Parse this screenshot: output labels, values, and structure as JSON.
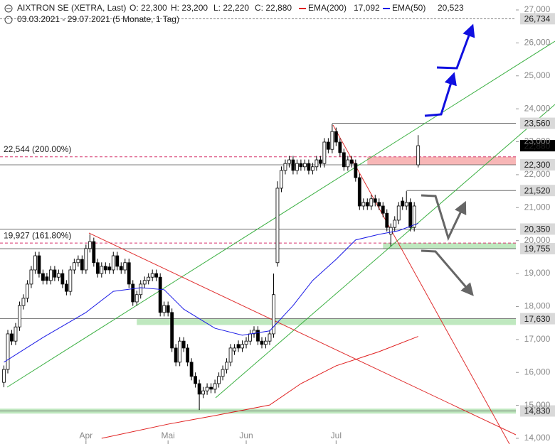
{
  "chart_data": {
    "type": "candlestick",
    "title": "AIXTRON SE (XETRA, Last)",
    "subtitle": "03.03.2021 - 29.07.2021 (5 Monate, 1 Tag)",
    "quote": [
      {
        "name": "O:",
        "label": "22,300"
      },
      {
        "name": "H:",
        "label": "23,200"
      },
      {
        "name": "L:",
        "label": "22,220"
      },
      {
        "name": "C:",
        "label": "22,880"
      }
    ],
    "up_color": "#ffffff",
    "down_color": "#000000",
    "ohlc": [
      [
        15700,
        16210,
        15550,
        16090
      ],
      [
        16090,
        17290,
        15970,
        17170
      ],
      [
        17170,
        17290,
        16830,
        16950
      ],
      [
        16950,
        17500,
        16830,
        17380
      ],
      [
        17380,
        18150,
        17260,
        18030
      ],
      [
        18030,
        18370,
        17910,
        18250
      ],
      [
        18250,
        18800,
        18130,
        18680
      ],
      [
        18680,
        19230,
        18560,
        19110
      ],
      [
        19110,
        19660,
        18990,
        19540
      ],
      [
        19540,
        19660,
        18880,
        19000
      ],
      [
        19000,
        19120,
        18670,
        18790
      ],
      [
        18900,
        19020,
        18670,
        18790
      ],
      [
        18790,
        19230,
        18670,
        19110
      ],
      [
        19110,
        19230,
        18770,
        18890
      ],
      [
        18890,
        19120,
        18770,
        19000
      ],
      [
        19000,
        19120,
        18560,
        18680
      ],
      [
        18680,
        18800,
        18340,
        18460
      ],
      [
        18460,
        19230,
        18340,
        19110
      ],
      [
        19110,
        19450,
        18990,
        19330
      ],
      [
        19330,
        19550,
        19210,
        19430
      ],
      [
        19430,
        19550,
        18990,
        19110
      ],
      [
        19110,
        19880,
        18990,
        19760
      ],
      [
        19760,
        20190,
        19640,
        19970
      ],
      [
        19970,
        20090,
        19210,
        19330
      ],
      [
        19330,
        19450,
        18880,
        19000
      ],
      [
        19000,
        19340,
        18880,
        19220
      ],
      [
        19220,
        19340,
        18990,
        19110
      ],
      [
        19200,
        19320,
        18990,
        19110
      ],
      [
        19110,
        19660,
        18990,
        19540
      ],
      [
        19540,
        19660,
        19100,
        19220
      ],
      [
        19220,
        19340,
        18990,
        19110
      ],
      [
        19110,
        19450,
        18990,
        19330
      ],
      [
        19330,
        19450,
        18560,
        18680
      ],
      [
        18680,
        18800,
        18020,
        18140
      ],
      [
        18140,
        18480,
        18020,
        18360
      ],
      [
        18360,
        18800,
        18240,
        18680
      ],
      [
        18680,
        18910,
        18560,
        18790
      ],
      [
        18790,
        19010,
        18670,
        18890
      ],
      [
        18890,
        19120,
        18770,
        19000
      ],
      [
        19000,
        19120,
        18770,
        18890
      ],
      [
        18890,
        19010,
        17700,
        17820
      ],
      [
        17820,
        18150,
        17700,
        18030
      ],
      [
        18030,
        18150,
        17700,
        17820
      ],
      [
        17820,
        17940,
        16620,
        16740
      ],
      [
        16740,
        16860,
        16190,
        16310
      ],
      [
        16310,
        17070,
        16190,
        16950
      ],
      [
        16950,
        17070,
        16620,
        16740
      ],
      [
        16740,
        16860,
        16190,
        16310
      ],
      [
        16310,
        16430,
        15760,
        15880
      ],
      [
        15880,
        16000,
        15540,
        15660
      ],
      [
        15660,
        15780,
        14860,
        15340
      ],
      [
        15340,
        15560,
        15220,
        15440
      ],
      [
        15440,
        15670,
        15320,
        15550
      ],
      [
        15550,
        15670,
        15370,
        15490
      ],
      [
        15490,
        15780,
        15370,
        15660
      ],
      [
        15660,
        16000,
        15540,
        15880
      ],
      [
        15880,
        16210,
        15760,
        16090
      ],
      [
        16090,
        16430,
        15970,
        16310
      ],
      [
        16310,
        16860,
        16190,
        16740
      ],
      [
        16650,
        16860,
        16530,
        16740
      ],
      [
        16850,
        16970,
        16620,
        16740
      ],
      [
        16740,
        16970,
        16620,
        16850
      ],
      [
        16850,
        17070,
        16730,
        16950
      ],
      [
        16950,
        17290,
        16830,
        17170
      ],
      [
        17170,
        17400,
        17050,
        17280
      ],
      [
        17280,
        17400,
        16830,
        16950
      ],
      [
        16950,
        17070,
        16730,
        16850
      ],
      [
        16850,
        17070,
        16730,
        16950
      ],
      [
        16950,
        17290,
        16830,
        17170
      ],
      [
        17170,
        19000,
        17050,
        18360
      ],
      [
        19330,
        21800,
        19210,
        21590
      ],
      [
        21590,
        22250,
        21470,
        22130
      ],
      [
        22130,
        22460,
        22010,
        22340
      ],
      [
        22340,
        22570,
        22220,
        22450
      ],
      [
        22450,
        22570,
        22010,
        22130
      ],
      [
        22130,
        22460,
        22010,
        22340
      ],
      [
        22340,
        22460,
        22120,
        22240
      ],
      [
        22240,
        22460,
        22120,
        22340
      ],
      [
        22340,
        22460,
        22010,
        22130
      ],
      [
        22130,
        22360,
        22010,
        22240
      ],
      [
        22240,
        22570,
        22120,
        22450
      ],
      [
        22450,
        22570,
        22220,
        22340
      ],
      [
        22340,
        23110,
        22220,
        22990
      ],
      [
        22990,
        23110,
        22650,
        22770
      ],
      [
        22770,
        23540,
        22650,
        23310
      ],
      [
        23310,
        23430,
        22870,
        22990
      ],
      [
        22990,
        23110,
        22550,
        22670
      ],
      [
        22670,
        22790,
        22120,
        22240
      ],
      [
        22240,
        22570,
        22120,
        22450
      ],
      [
        22450,
        22570,
        22220,
        22340
      ],
      [
        22340,
        22460,
        21790,
        21910
      ],
      [
        21910,
        22030,
        20930,
        21050
      ],
      [
        21050,
        21280,
        20930,
        21160
      ],
      [
        21160,
        21280,
        20930,
        21050
      ],
      [
        21050,
        21390,
        20930,
        21270
      ],
      [
        21270,
        21390,
        21040,
        21160
      ],
      [
        21160,
        21280,
        20930,
        21050
      ],
      [
        21050,
        21170,
        20710,
        20830
      ],
      [
        20830,
        20950,
        20280,
        20400
      ],
      [
        20200,
        20520,
        19830,
        20400
      ],
      [
        20400,
        20740,
        20280,
        20620
      ],
      [
        20620,
        21170,
        20500,
        21050
      ],
      [
        21200,
        21320,
        20930,
        21050
      ],
      [
        21050,
        21500,
        20930,
        21160
      ],
      [
        21160,
        21280,
        20280,
        20400
      ],
      [
        20400,
        21170,
        20280,
        21050
      ],
      [
        22300,
        23200,
        22220,
        22880
      ]
    ],
    "series": [
      {
        "name": "EMA(200)",
        "color": "#e02020",
        "x": [
          25,
          42,
          54,
          68,
          76,
          85,
          96,
          106
        ],
        "values": [
          14000,
          14430,
          14690,
          15010,
          15660,
          16200,
          16630,
          17092
        ],
        "value_labels": [
          null,
          null,
          null,
          null,
          null,
          null,
          null,
          "17,092"
        ]
      },
      {
        "name": "EMA(50)",
        "color": "#1a1ae6",
        "x": [
          0,
          10,
          21,
          28,
          35,
          41,
          46,
          54,
          61,
          68,
          74,
          79,
          85,
          90,
          96,
          101,
          106
        ],
        "values": [
          16310,
          17060,
          17820,
          18460,
          18570,
          18510,
          17920,
          17340,
          17130,
          17260,
          18030,
          18790,
          19430,
          20020,
          20190,
          20300,
          20523
        ],
        "value_labels": [
          null,
          null,
          null,
          null,
          null,
          null,
          null,
          null,
          null,
          null,
          null,
          null,
          null,
          null,
          null,
          null,
          "20,523"
        ]
      }
    ],
    "xlim": [
      -1,
      131
    ],
    "xticks": [
      {
        "value": 21,
        "label": "Apr"
      },
      {
        "value": 42,
        "label": "Mai"
      },
      {
        "value": 62,
        "label": "Jun"
      },
      {
        "value": 85,
        "label": "Jul"
      }
    ],
    "ylim": [
      14000,
      27000
    ],
    "yticks": [
      {
        "value": 14000,
        "label": "14,000"
      },
      {
        "value": 15000,
        "label": "15,000"
      },
      {
        "value": 16000,
        "label": "16,000"
      },
      {
        "value": 17000,
        "label": "17,000"
      },
      {
        "value": 18000,
        "label": "18,000"
      },
      {
        "value": 19000,
        "label": "19,000"
      },
      {
        "value": 20000,
        "label": "20,000"
      },
      {
        "value": 21000,
        "label": "21,000"
      },
      {
        "value": 22000,
        "label": "22,000"
      },
      {
        "value": 23000,
        "label": "23,000"
      },
      {
        "value": 24000,
        "label": "24,000"
      },
      {
        "value": 25000,
        "label": "25,000"
      },
      {
        "value": 26000,
        "label": "26,000"
      },
      {
        "value": 27000,
        "label": "27,000"
      }
    ],
    "levels": [
      {
        "value": 26734,
        "label": "26,734",
        "style": "dashed",
        "start": -1
      },
      {
        "value": 23560,
        "label": "23,560",
        "style": "solid",
        "start": 84
      },
      {
        "value": 22880,
        "label": "22,880",
        "style": "current",
        "start": 106
      },
      {
        "value": 22300,
        "label": "22,300",
        "style": "solid",
        "start": -1
      },
      {
        "value": 21520,
        "label": "21,520",
        "style": "solid",
        "start": 103
      },
      {
        "value": 20350,
        "label": "20,350",
        "style": "solid",
        "start": -1
      },
      {
        "value": 19755,
        "label": "19,755",
        "style": "solid",
        "start": -1
      },
      {
        "value": 17630,
        "label": "17,630",
        "style": "solid",
        "start": -1
      },
      {
        "value": 14830,
        "label": "14,830",
        "style": "solid",
        "start": -1
      }
    ],
    "zones": [
      {
        "from": 22300,
        "to": 22544,
        "start": 93,
        "color": "#f7b6b6"
      },
      {
        "from": 19755,
        "to": 19927,
        "start": 97,
        "color": "#bfe8bf"
      },
      {
        "from": 17440,
        "to": 17630,
        "start": 34,
        "color": "#bfe8bf"
      },
      {
        "from": 14750,
        "to": 14900,
        "start": -1,
        "color": "#bfe8bf"
      }
    ],
    "fib": [
      {
        "value": 22544,
        "label": "22,544 (200.00%)"
      },
      {
        "value": 19927,
        "label": "19,927 (161.80%)"
      }
    ],
    "fib_color": "#d6336c"
  }
}
